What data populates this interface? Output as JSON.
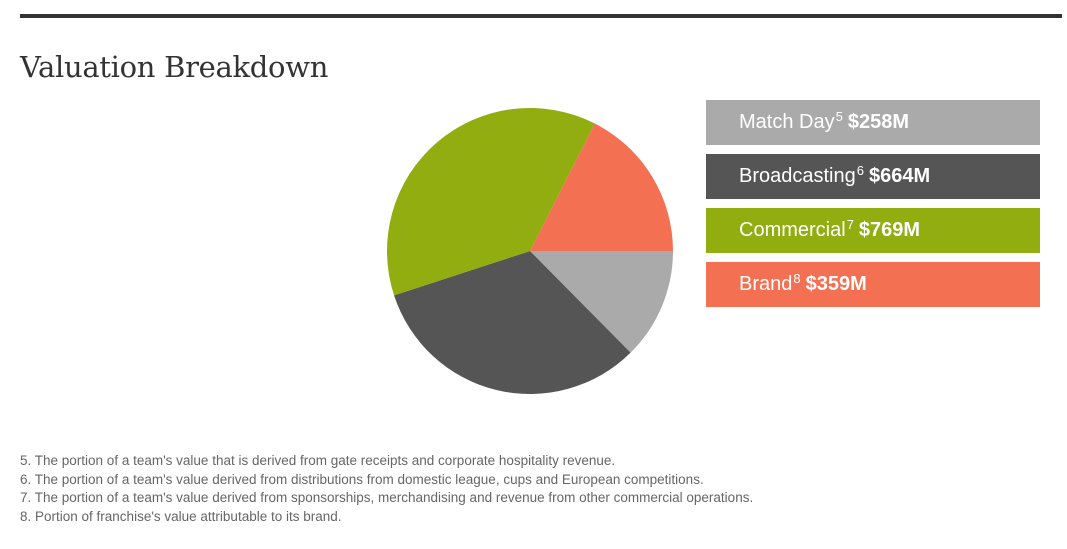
{
  "header": {
    "title": "Valuation Breakdown"
  },
  "legend": [
    {
      "label": "Match Day",
      "footnote": "5",
      "value": "$258M",
      "color": "#aaaaaa"
    },
    {
      "label": "Broadcasting",
      "footnote": "6",
      "value": "$664M",
      "color": "#555555"
    },
    {
      "label": "Commercial",
      "footnote": "7",
      "value": "$769M",
      "color": "#92ad10"
    },
    {
      "label": "Brand",
      "footnote": "8",
      "value": "$359M",
      "color": "#f37053"
    }
  ],
  "footnotes": [
    "5. The portion of a team's value that is derived from gate receipts and corporate hospitality revenue.",
    "6. The portion of a team's value derived from distributions from domestic league, cups and European competitions.",
    "7. The portion of a team's value derived from sponsorships, merchandising and revenue from other commercial operations.",
    "8. Portion of franchise's value attributable to its brand."
  ],
  "chart_data": {
    "type": "pie",
    "title": "Valuation Breakdown",
    "categories": [
      "Match Day",
      "Broadcasting",
      "Commercial",
      "Brand"
    ],
    "values": [
      258,
      664,
      769,
      359
    ],
    "unit": "$M",
    "colors": [
      "#aaaaaa",
      "#555555",
      "#92ad10",
      "#f37053"
    ],
    "start_angle": "3 o'clock, clockwise",
    "legend_position": "right"
  }
}
